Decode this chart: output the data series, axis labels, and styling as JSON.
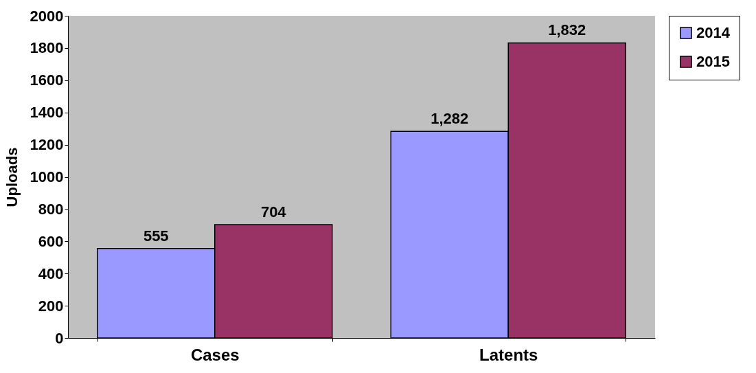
{
  "chart_data": {
    "type": "bar",
    "ylabel": "Uploads",
    "categories": [
      "Cases",
      "Latents"
    ],
    "series": [
      {
        "name": "2014",
        "color": "#9999ff",
        "values": [
          555,
          1282
        ],
        "value_labels": [
          "555",
          "1,282"
        ]
      },
      {
        "name": "2015",
        "color": "#993366",
        "values": [
          704,
          1832
        ],
        "value_labels": [
          "704",
          "1,832"
        ]
      }
    ],
    "ylim": [
      0,
      2000
    ],
    "yticks": [
      0,
      200,
      400,
      600,
      800,
      1000,
      1200,
      1400,
      1600,
      1800,
      2000
    ],
    "grid": false,
    "legend": "right"
  }
}
